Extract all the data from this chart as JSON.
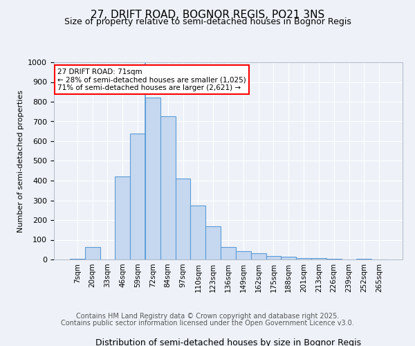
{
  "title1": "27, DRIFT ROAD, BOGNOR REGIS, PO21 3NS",
  "title2": "Size of property relative to semi-detached houses in Bognor Regis",
  "xlabel": "Distribution of semi-detached houses by size in Bognor Regis",
  "ylabel": "Number of semi-detached properties",
  "bins": [
    "7sqm",
    "20sqm",
    "33sqm",
    "46sqm",
    "59sqm",
    "72sqm",
    "84sqm",
    "97sqm",
    "110sqm",
    "123sqm",
    "136sqm",
    "149sqm",
    "162sqm",
    "175sqm",
    "188sqm",
    "201sqm",
    "213sqm",
    "226sqm",
    "239sqm",
    "252sqm",
    "265sqm"
  ],
  "values": [
    5,
    63,
    0,
    421,
    638,
    820,
    727,
    410,
    272,
    170,
    63,
    42,
    32,
    18,
    15,
    8,
    7,
    2,
    0,
    5,
    0
  ],
  "bar_color": "#c5d8f0",
  "bar_edge_color": "#5b9bd5",
  "annotation_title": "27 DRIFT ROAD: 71sqm",
  "annotation_line1": "← 28% of semi-detached houses are smaller (1,025)",
  "annotation_line2": "71% of semi-detached houses are larger (2,621) →",
  "footer1": "Contains HM Land Registry data © Crown copyright and database right 2025.",
  "footer2": "Contains public sector information licensed under the Open Government Licence v3.0.",
  "ylim": [
    0,
    1000
  ],
  "yticks": [
    0,
    100,
    200,
    300,
    400,
    500,
    600,
    700,
    800,
    900,
    1000
  ],
  "bg_color": "#eef2f8",
  "plot_bg_color": "#eef2f8",
  "vline_x": 4.5,
  "vline_color": "#5b9bd5"
}
